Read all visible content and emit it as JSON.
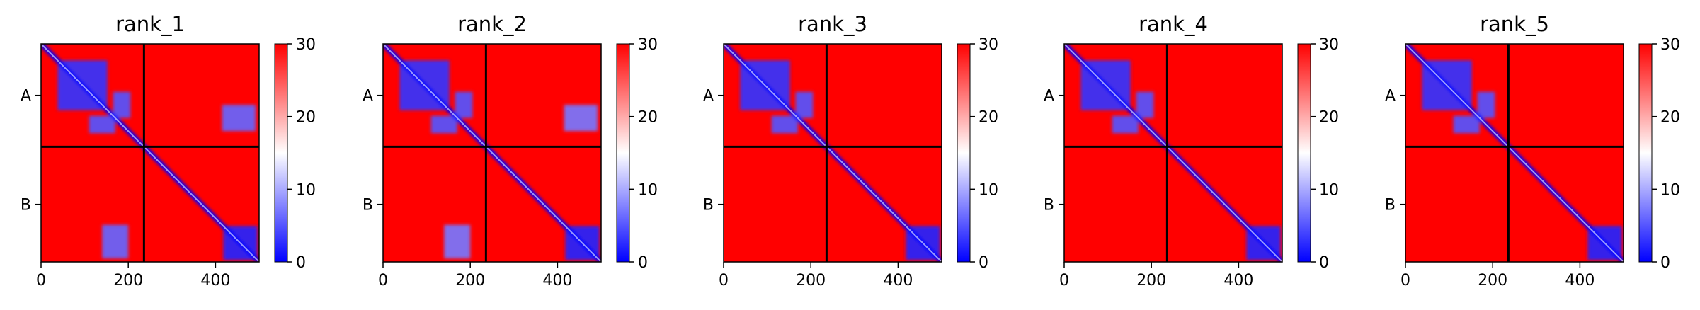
{
  "chart_data": [
    {
      "type": "heatmap",
      "title": "rank_1",
      "x_ticks": [
        0,
        200,
        400
      ],
      "xlim": [
        0,
        500
      ],
      "row_labels": [
        "A",
        "B"
      ],
      "chain_boundary": 236,
      "colorbar": {
        "ticks": [
          0,
          10,
          20,
          30
        ],
        "range": [
          0,
          30
        ],
        "colormap": "bwr"
      },
      "blocks": [
        {
          "x": [
            38,
            152
          ],
          "y": [
            38,
            152
          ],
          "value": 3
        },
        {
          "x": [
            110,
            170
          ],
          "y": [
            165,
            205
          ],
          "value": 5
        },
        {
          "x": [
            415,
            492
          ],
          "y": [
            140,
            200
          ],
          "value": 6
        },
        {
          "x": [
            165,
            205
          ],
          "y": [
            110,
            170
          ],
          "value": 5
        },
        {
          "x": [
            140,
            200
          ],
          "y": [
            415,
            492
          ],
          "value": 6
        },
        {
          "x": [
            418,
            496
          ],
          "y": [
            418,
            496
          ],
          "value": 2
        }
      ]
    },
    {
      "type": "heatmap",
      "title": "rank_2",
      "x_ticks": [
        0,
        200,
        400
      ],
      "xlim": [
        0,
        500
      ],
      "row_labels": [
        "A",
        "B"
      ],
      "chain_boundary": 236,
      "colorbar": {
        "ticks": [
          0,
          10,
          20,
          30
        ],
        "range": [
          0,
          30
        ],
        "colormap": "bwr"
      },
      "blocks": [
        {
          "x": [
            38,
            152
          ],
          "y": [
            38,
            152
          ],
          "value": 3
        },
        {
          "x": [
            110,
            170
          ],
          "y": [
            165,
            205
          ],
          "value": 5
        },
        {
          "x": [
            415,
            492
          ],
          "y": [
            140,
            200
          ],
          "value": 7
        },
        {
          "x": [
            165,
            205
          ],
          "y": [
            110,
            170
          ],
          "value": 5
        },
        {
          "x": [
            140,
            200
          ],
          "y": [
            415,
            492
          ],
          "value": 7
        },
        {
          "x": [
            418,
            496
          ],
          "y": [
            418,
            496
          ],
          "value": 2
        }
      ]
    },
    {
      "type": "heatmap",
      "title": "rank_3",
      "x_ticks": [
        0,
        200,
        400
      ],
      "xlim": [
        0,
        500
      ],
      "row_labels": [
        "A",
        "B"
      ],
      "chain_boundary": 236,
      "colorbar": {
        "ticks": [
          0,
          10,
          20,
          30
        ],
        "range": [
          0,
          30
        ],
        "colormap": "bwr"
      },
      "blocks": [
        {
          "x": [
            38,
            152
          ],
          "y": [
            38,
            152
          ],
          "value": 3
        },
        {
          "x": [
            110,
            170
          ],
          "y": [
            165,
            205
          ],
          "value": 5
        },
        {
          "x": [
            165,
            205
          ],
          "y": [
            110,
            170
          ],
          "value": 5
        },
        {
          "x": [
            418,
            496
          ],
          "y": [
            418,
            496
          ],
          "value": 2
        }
      ]
    },
    {
      "type": "heatmap",
      "title": "rank_4",
      "x_ticks": [
        0,
        200,
        400
      ],
      "xlim": [
        0,
        500
      ],
      "row_labels": [
        "A",
        "B"
      ],
      "chain_boundary": 236,
      "colorbar": {
        "ticks": [
          0,
          10,
          20,
          30
        ],
        "range": [
          0,
          30
        ],
        "colormap": "bwr"
      },
      "blocks": [
        {
          "x": [
            38,
            152
          ],
          "y": [
            38,
            152
          ],
          "value": 3
        },
        {
          "x": [
            110,
            170
          ],
          "y": [
            165,
            205
          ],
          "value": 5
        },
        {
          "x": [
            165,
            205
          ],
          "y": [
            110,
            170
          ],
          "value": 5
        },
        {
          "x": [
            418,
            496
          ],
          "y": [
            418,
            496
          ],
          "value": 2
        }
      ]
    },
    {
      "type": "heatmap",
      "title": "rank_5",
      "x_ticks": [
        0,
        200,
        400
      ],
      "xlim": [
        0,
        500
      ],
      "row_labels": [
        "A",
        "B"
      ],
      "chain_boundary": 236,
      "colorbar": {
        "ticks": [
          0,
          10,
          20,
          30
        ],
        "range": [
          0,
          30
        ],
        "colormap": "bwr"
      },
      "blocks": [
        {
          "x": [
            38,
            152
          ],
          "y": [
            38,
            152
          ],
          "value": 3
        },
        {
          "x": [
            110,
            170
          ],
          "y": [
            165,
            205
          ],
          "value": 5
        },
        {
          "x": [
            165,
            205
          ],
          "y": [
            110,
            170
          ],
          "value": 5
        },
        {
          "x": [
            418,
            496
          ],
          "y": [
            418,
            496
          ],
          "value": 2
        }
      ]
    }
  ]
}
